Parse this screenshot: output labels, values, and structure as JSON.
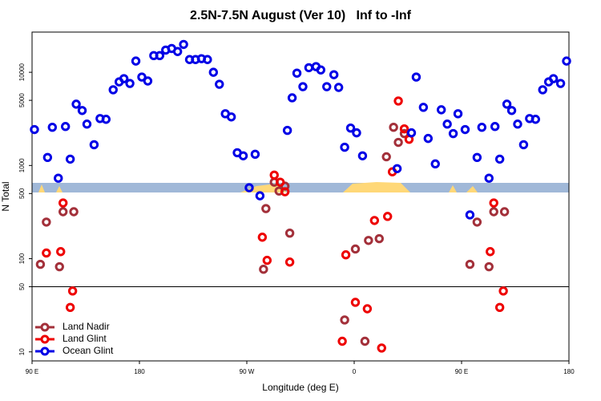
{
  "chart_data": {
    "type": "scatter",
    "title": "2.5N-7.5N August (Ver 10)   Inf to -Inf",
    "x_label": "Longitude (deg E)",
    "y_label": "N Total",
    "log_y": true,
    "xlim": [
      90,
      540
    ],
    "ylim": [
      8,
      27000
    ],
    "xticks": [
      {
        "value": 90,
        "label": "90 E"
      },
      180,
      {
        "value": 270,
        "label": "90 W"
      },
      {
        "value": 360,
        "label": "0"
      },
      {
        "value": 450,
        "label": "90 E"
      },
      {
        "value": 540,
        "label": "180"
      }
    ],
    "yticks": [
      10,
      50,
      100,
      500,
      1000,
      5000,
      10000
    ],
    "hline": 50,
    "legend": "lower left",
    "series": [
      {
        "name": "Land Nadir",
        "color": "#a3303a",
        "x": [
          97,
          102,
          113,
          116,
          125,
          284,
          286,
          293,
          297,
          302,
          306,
          352,
          361,
          369,
          372,
          381,
          387,
          393,
          397,
          402,
          457,
          463,
          473,
          477,
          486
        ],
        "values": [
          87,
          247,
          82,
          319,
          319,
          77,
          345,
          662,
          532,
          600,
          188,
          22,
          127,
          13,
          157,
          164,
          1240,
          2570,
          1770,
          2200,
          87,
          247,
          82,
          319,
          319
        ]
      },
      {
        "name": "Land Glint",
        "color": "#ee0000",
        "x": [
          102,
          114,
          116,
          124,
          122,
          283,
          287,
          293,
          298,
          302,
          306,
          353,
          361,
          371,
          377,
          383,
          388,
          392,
          397,
          402,
          406,
          350,
          474,
          477,
          485,
          482
        ],
        "values": [
          115,
          119,
          396,
          45,
          30,
          170,
          96,
          789,
          662,
          523,
          92,
          110,
          34,
          29,
          257,
          11,
          284,
          855,
          4920,
          2470,
          1910,
          13,
          119,
          396,
          45,
          30
        ]
      },
      {
        "name": "Ocean Glint",
        "color": "#0000e6",
        "x": [
          92,
          103,
          107,
          112,
          118,
          122,
          127,
          132,
          136,
          142,
          147,
          152,
          158,
          163,
          167,
          172,
          177,
          182,
          187,
          192,
          197,
          202,
          207,
          212,
          217,
          222,
          227,
          232,
          237,
          242,
          247,
          252,
          257,
          262,
          267,
          272,
          277,
          281,
          304,
          308,
          312,
          317,
          322,
          328,
          332,
          337,
          343,
          347,
          352,
          357,
          362,
          367,
          396,
          408,
          412,
          418,
          422,
          428,
          433,
          438,
          443,
          447,
          453,
          457,
          463,
          467,
          473,
          478,
          482,
          488,
          492,
          497,
          502,
          507,
          512,
          518,
          523,
          527,
          533,
          538
        ],
        "values": [
          2430,
          1220,
          2570,
          730,
          2620,
          1170,
          4550,
          3890,
          2780,
          1670,
          3190,
          3130,
          6490,
          7890,
          8550,
          7590,
          13200,
          8890,
          8060,
          15100,
          15100,
          17300,
          18000,
          16700,
          19900,
          13700,
          13700,
          14000,
          13700,
          10000,
          7440,
          3590,
          3320,
          1370,
          1270,
          577,
          1320,
          473,
          2380,
          5320,
          9790,
          7010,
          11200,
          11500,
          10600,
          7010,
          9420,
          6880,
          1570,
          2520,
          2240,
          1270,
          925,
          2240,
          8890,
          4210,
          1950,
          1040,
          3960,
          2780,
          2200,
          3590,
          2430,
          295,
          1220,
          2570,
          730,
          2620,
          1170,
          4550,
          3890,
          2780,
          1670,
          3190,
          3130,
          6490,
          7890,
          8550,
          7590,
          13200
        ]
      }
    ]
  }
}
